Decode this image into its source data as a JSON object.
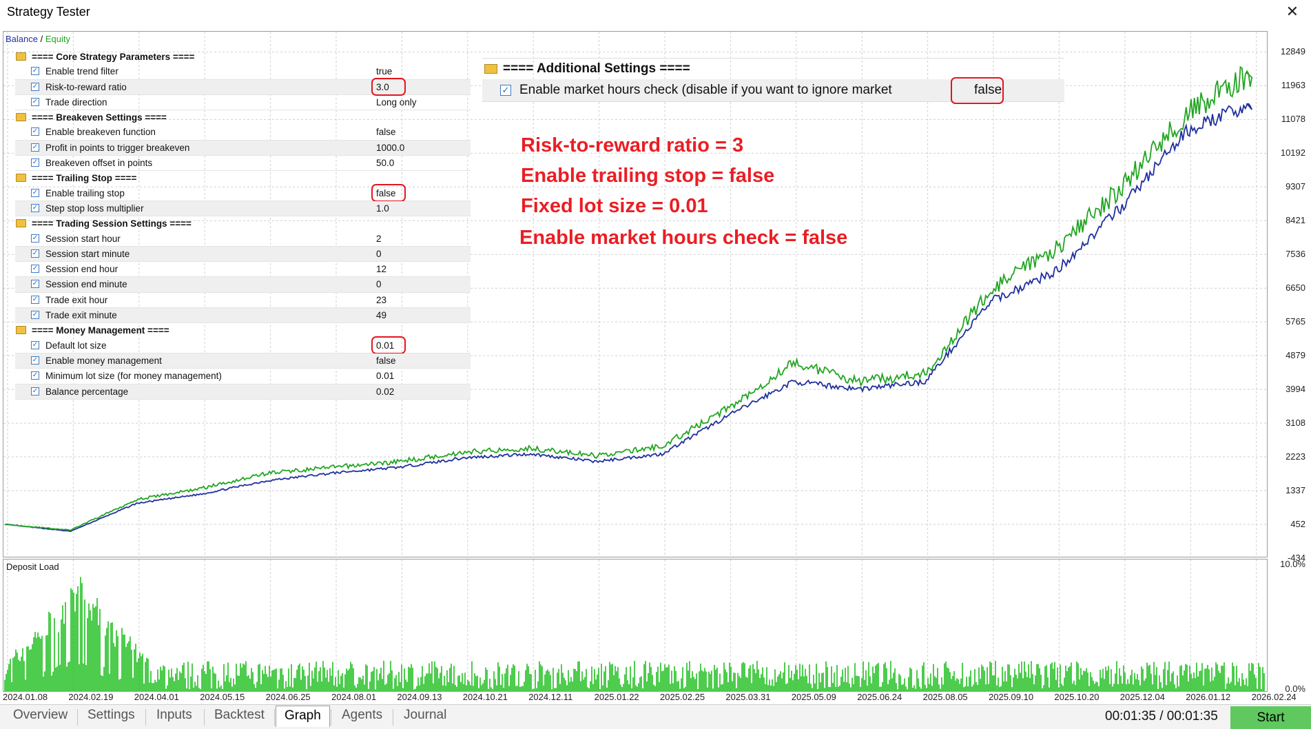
{
  "window": {
    "title": "Strategy Tester"
  },
  "legend": {
    "balance": "Balance",
    "separator": "/",
    "equity": "Equity"
  },
  "colors": {
    "balance": "#1f2f9e",
    "equity": "#21a521",
    "deposit": "#21c021",
    "annotation": "#ea1e24",
    "start_button": "#5fc95f"
  },
  "parameters": [
    {
      "type": "group",
      "label": "==== Core Strategy Parameters ===="
    },
    {
      "type": "param",
      "label": "Enable trend filter",
      "value": "true"
    },
    {
      "type": "param",
      "label": "Risk-to-reward ratio",
      "value": "3.0",
      "highlighted": true
    },
    {
      "type": "param",
      "label": "Trade direction",
      "value": "Long only"
    },
    {
      "type": "group",
      "label": "==== Breakeven Settings ===="
    },
    {
      "type": "param",
      "label": "Enable breakeven function",
      "value": "false"
    },
    {
      "type": "param",
      "label": "Profit in points to trigger breakeven",
      "value": "1000.0"
    },
    {
      "type": "param",
      "label": "Breakeven offset in points",
      "value": "50.0"
    },
    {
      "type": "group",
      "label": "==== Trailing Stop ===="
    },
    {
      "type": "param",
      "label": "Enable trailing stop",
      "value": "false",
      "highlighted": true
    },
    {
      "type": "param",
      "label": "Step stop loss multiplier",
      "value": "1.0"
    },
    {
      "type": "group",
      "label": "==== Trading Session Settings ===="
    },
    {
      "type": "param",
      "label": "Session start hour",
      "value": "2"
    },
    {
      "type": "param",
      "label": "Session start minute",
      "value": "0"
    },
    {
      "type": "param",
      "label": "Session end hour",
      "value": "12"
    },
    {
      "type": "param",
      "label": "Session end minute",
      "value": "0"
    },
    {
      "type": "param",
      "label": "Trade exit hour",
      "value": "23"
    },
    {
      "type": "param",
      "label": "Trade exit minute",
      "value": "49"
    },
    {
      "type": "group",
      "label": "==== Money Management ===="
    },
    {
      "type": "param",
      "label": "Default lot size",
      "value": "0.01",
      "highlighted": true
    },
    {
      "type": "param",
      "label": "Enable money management",
      "value": "false"
    },
    {
      "type": "param",
      "label": "Minimum lot size (for money management)",
      "value": "0.01"
    },
    {
      "type": "param",
      "label": "Balance percentage",
      "value": "0.02"
    }
  ],
  "additional_settings": {
    "header": "==== Additional Settings ====",
    "label": "Enable market hours check (disable if you want to ignore market",
    "value": "false"
  },
  "annotations": [
    "Risk-to-reward ratio = 3",
    "Enable trailing stop = false",
    "Fixed lot size = 0.01",
    "Enable market hours check = false"
  ],
  "chart_data": [
    {
      "type": "line",
      "legend": "top-left",
      "grid": true,
      "x": [
        "2024.01.08",
        "2024.02.19",
        "2024.04.01",
        "2024.05.15",
        "2024.06.25",
        "2024.08.01",
        "2024.09.13",
        "2024.10.21",
        "2024.12.11",
        "2025.01.22",
        "2025.02.25",
        "2025.03.31",
        "2025.05.09",
        "2025.06.24",
        "2025.08.05",
        "2025.09.10",
        "2025.10.20",
        "2025.12.04",
        "2026.01.12",
        "2026.02.24"
      ],
      "y_ticks": [
        12849,
        11963,
        11078,
        10192,
        9307,
        8421,
        7536,
        6650,
        5765,
        4879,
        3994,
        3108,
        2223,
        1337,
        452,
        -434
      ],
      "ylim": [
        -434,
        13380
      ],
      "series": [
        {
          "name": "Balance",
          "values": [
            452,
            270,
            1000,
            1250,
            1600,
            1800,
            1950,
            2200,
            2300,
            2100,
            2300,
            3300,
            4200,
            4000,
            4200,
            6300,
            7100,
            8800,
            10800,
            11500
          ]
        },
        {
          "name": "Equity",
          "values": [
            452,
            300,
            1100,
            1400,
            1800,
            1950,
            2100,
            2350,
            2450,
            2250,
            2500,
            3500,
            4700,
            4200,
            4400,
            6600,
            7700,
            9300,
            11300,
            12300
          ]
        }
      ]
    },
    {
      "type": "bar",
      "title": "Deposit Load",
      "y_ticks": [
        "10.0%",
        "0.0%"
      ],
      "ylim": [
        0,
        10
      ],
      "peak": {
        "x": "2024.02.19",
        "value": 9.3
      },
      "typical_range": [
        0.8,
        2.5
      ]
    }
  ],
  "tabs": [
    {
      "label": "Overview",
      "active": false
    },
    {
      "label": "Settings",
      "active": false
    },
    {
      "label": "Inputs",
      "active": false
    },
    {
      "label": "Backtest",
      "active": false
    },
    {
      "label": "Graph",
      "active": true
    },
    {
      "label": "Agents",
      "active": false
    },
    {
      "label": "Journal",
      "active": false
    }
  ],
  "status": {
    "timer": "00:01:35 / 00:01:35",
    "start_label": "Start"
  }
}
